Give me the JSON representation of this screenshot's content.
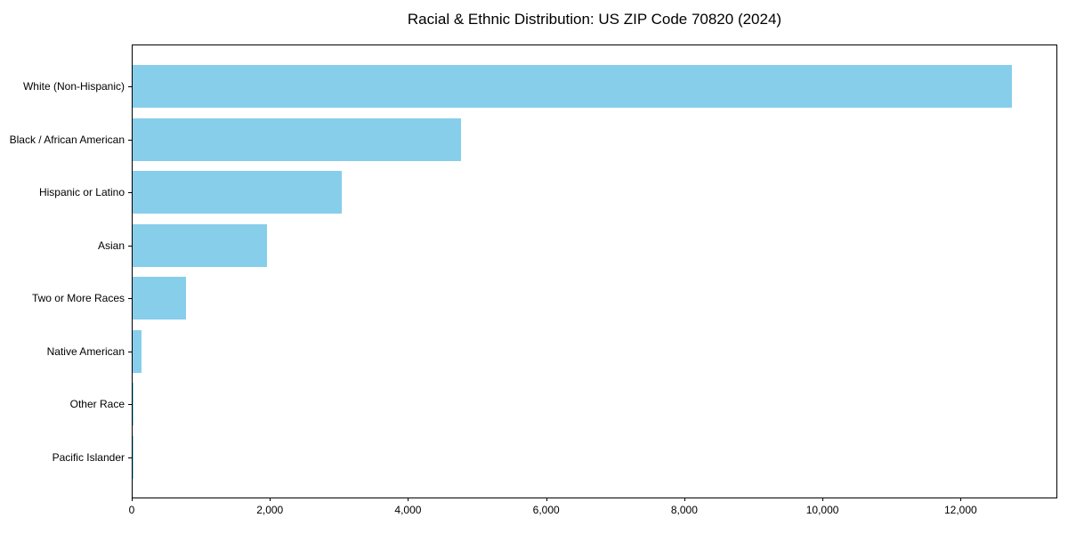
{
  "chart_data": {
    "type": "bar",
    "orientation": "horizontal",
    "title": "Racial & Ethnic Distribution: US ZIP Code 70820 (2024)",
    "categories": [
      "White (Non-Hispanic)",
      "Black / African American",
      "Hispanic or Latino",
      "Asian",
      "Two or More Races",
      "Native American",
      "Other Race",
      "Pacific Islander"
    ],
    "values": [
      12750,
      4760,
      3030,
      1945,
      770,
      130,
      10,
      5
    ],
    "xlabel": "",
    "ylabel": "",
    "xlim": [
      0,
      13400
    ],
    "xticks": [
      0,
      2000,
      4000,
      6000,
      8000,
      10000,
      12000
    ],
    "xtick_labels": [
      "0",
      "2,000",
      "4,000",
      "6,000",
      "8,000",
      "10,000",
      "12,000"
    ],
    "bar_color": "#87CEEB",
    "grid": false,
    "legend": false,
    "frame": "full-box"
  }
}
